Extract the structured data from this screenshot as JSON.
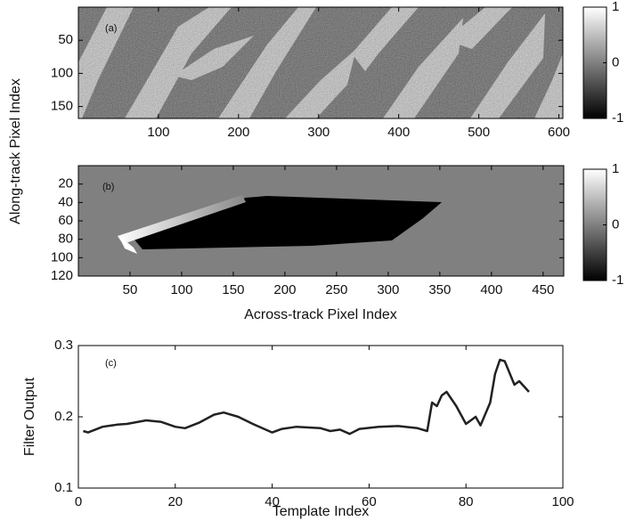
{
  "chart_data": [
    {
      "type": "image",
      "label": "(a)",
      "xlim": [
        0,
        605
      ],
      "xticks": [
        100,
        200,
        300,
        400,
        500,
        600
      ],
      "ylim": [
        0,
        168
      ],
      "yticks": [
        50,
        100,
        150
      ],
      "y_reversed": true,
      "colorbar": {
        "lim": [
          -1,
          1
        ],
        "ticks": [
          -1,
          0,
          1
        ]
      }
    },
    {
      "type": "image",
      "label": "(b)",
      "xlabel": "Across-track Pixel Index",
      "ylabel": "Along-track Pixel Index",
      "xlim": [
        0,
        470
      ],
      "xticks": [
        50,
        100,
        150,
        200,
        250,
        300,
        350,
        400,
        450
      ],
      "ylim": [
        0,
        120
      ],
      "yticks": [
        20,
        40,
        60,
        80,
        100,
        120
      ],
      "y_reversed": true,
      "colorbar": {
        "lim": [
          -1,
          1
        ],
        "ticks": [
          -1,
          0,
          1
        ]
      }
    },
    {
      "type": "line",
      "label": "(c)",
      "xlabel": "Template Index",
      "ylabel": "Filter Output",
      "xlim": [
        0,
        100
      ],
      "xticks": [
        0,
        20,
        40,
        60,
        80,
        100
      ],
      "ylim": [
        0.1,
        0.3
      ],
      "yticks": [
        0.1,
        0.2,
        0.3
      ],
      "color": "#222222",
      "x": [
        1,
        2,
        5,
        8,
        10,
        14,
        17,
        20,
        22,
        25,
        28,
        30,
        33,
        36,
        40,
        42,
        45,
        50,
        52,
        54,
        56,
        58,
        62,
        66,
        70,
        72,
        73,
        74,
        75,
        76,
        78,
        80,
        82,
        83,
        85,
        86,
        87,
        88,
        90,
        91,
        93
      ],
      "values": [
        0.18,
        0.178,
        0.186,
        0.189,
        0.19,
        0.195,
        0.193,
        0.186,
        0.184,
        0.192,
        0.203,
        0.206,
        0.2,
        0.19,
        0.178,
        0.183,
        0.186,
        0.184,
        0.18,
        0.182,
        0.176,
        0.183,
        0.186,
        0.187,
        0.184,
        0.18,
        0.22,
        0.215,
        0.23,
        0.235,
        0.215,
        0.19,
        0.2,
        0.188,
        0.22,
        0.26,
        0.28,
        0.278,
        0.245,
        0.25,
        0.235
      ]
    }
  ]
}
